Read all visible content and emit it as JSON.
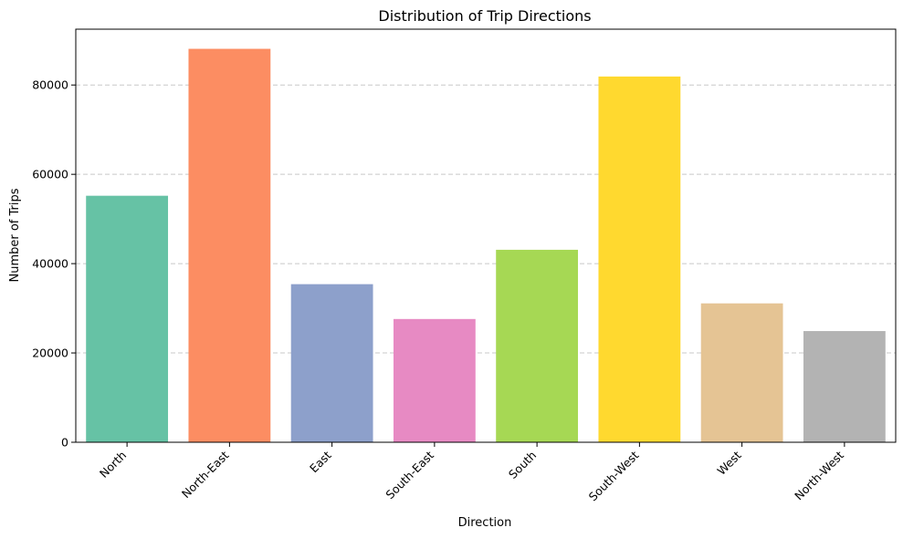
{
  "chart_data": {
    "type": "bar",
    "title": "Distribution of Trip Directions",
    "xlabel": "Direction",
    "ylabel": "Number of Trips",
    "categories": [
      "North",
      "North-East",
      "East",
      "South-East",
      "South",
      "South-West",
      "West",
      "North-West"
    ],
    "values": [
      55200,
      88100,
      35400,
      27600,
      43100,
      81900,
      31100,
      24900
    ],
    "colors": [
      "#66c2a5",
      "#fc8d62",
      "#8da0cb",
      "#e78ac3",
      "#a6d854",
      "#ffd92f",
      "#e5c494",
      "#b3b3b3"
    ],
    "ylim": [
      0,
      92500
    ],
    "yticks": [
      0,
      20000,
      40000,
      60000,
      80000
    ],
    "ytick_labels": [
      "0",
      "20000",
      "40000",
      "60000",
      "80000"
    ],
    "grid": "y-dashed",
    "legend": "none"
  }
}
